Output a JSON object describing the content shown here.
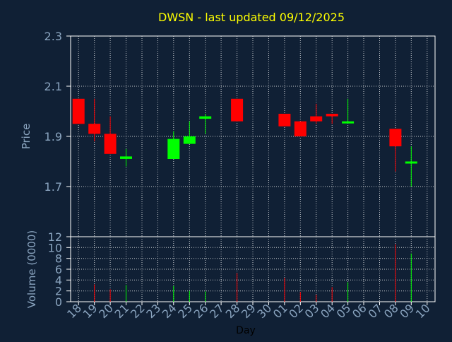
{
  "chart_data": {
    "type": "candlestick",
    "title": "DWSN - last updated 09/12/2025",
    "xlabel": "Day",
    "colors": {
      "background": "#102035",
      "plot_border": "#ffffff",
      "grid": "#ffffff",
      "title": "#ffff00",
      "axis_label": "#8aa4bf",
      "tick_label": "#8aa4bf",
      "up": "#00ff00",
      "down": "#ff0000"
    },
    "x_ticks": [
      "18",
      "19",
      "20",
      "21",
      "22",
      "23",
      "24",
      "25",
      "26",
      "27",
      "28",
      "29",
      "30",
      "01",
      "02",
      "03",
      "04",
      "05",
      "06",
      "07",
      "08",
      "09",
      "10"
    ],
    "price": {
      "ylabel": "Price",
      "ylim": [
        1.5,
        2.3
      ],
      "ticks": [
        "2.3",
        "2.1",
        "1.9",
        "1.7"
      ],
      "tick_values": [
        2.3,
        2.1,
        1.9,
        1.7
      ],
      "grid": true
    },
    "volume": {
      "ylabel": "Volume (0000)",
      "ylim": [
        0,
        12
      ],
      "ticks": [
        "12",
        "10",
        "8",
        "6",
        "4",
        "2",
        "0"
      ],
      "tick_values": [
        12,
        10,
        8,
        6,
        4,
        2,
        0
      ],
      "grid": true
    },
    "candles": [
      {
        "day": "18",
        "open": 2.05,
        "high": 2.05,
        "low": 1.95,
        "close": 1.95,
        "volume": 0
      },
      {
        "day": "19",
        "open": 1.95,
        "high": 2.05,
        "low": 1.88,
        "close": 1.91,
        "volume": 3.2
      },
      {
        "day": "20",
        "open": 1.91,
        "high": 1.98,
        "low": 1.83,
        "close": 1.83,
        "volume": 2.3
      },
      {
        "day": "21",
        "open": 1.81,
        "high": 1.85,
        "low": 1.78,
        "close": 1.82,
        "volume": 3.1
      },
      {
        "day": "24",
        "open": 1.81,
        "high": 1.92,
        "low": 1.81,
        "close": 1.89,
        "volume": 2.9
      },
      {
        "day": "25",
        "open": 1.87,
        "high": 1.96,
        "low": 1.87,
        "close": 1.9,
        "volume": 2.0
      },
      {
        "day": "26",
        "open": 1.97,
        "high": 1.99,
        "low": 1.91,
        "close": 1.98,
        "volume": 1.9
      },
      {
        "day": "28",
        "open": 2.05,
        "high": 2.05,
        "low": 1.96,
        "close": 1.96,
        "volume": 5.3
      },
      {
        "day": "01",
        "open": 1.99,
        "high": 1.99,
        "low": 1.94,
        "close": 1.94,
        "volume": 4.4
      },
      {
        "day": "02",
        "open": 1.96,
        "high": 1.96,
        "low": 1.9,
        "close": 1.9,
        "volume": 1.8
      },
      {
        "day": "03",
        "open": 1.98,
        "high": 2.03,
        "low": 1.95,
        "close": 1.96,
        "volume": 1.3
      },
      {
        "day": "04",
        "open": 1.99,
        "high": 1.99,
        "low": 1.95,
        "close": 1.98,
        "volume": 2.7
      },
      {
        "day": "05",
        "open": 1.96,
        "high": 2.05,
        "low": 1.96,
        "close": 1.96,
        "volume": 3.6
      },
      {
        "day": "08",
        "open": 1.93,
        "high": 1.93,
        "low": 1.76,
        "close": 1.86,
        "volume": 10.6
      },
      {
        "day": "09",
        "open": 1.8,
        "high": 1.86,
        "low": 1.7,
        "close": 1.8,
        "volume": 8.9
      }
    ]
  }
}
